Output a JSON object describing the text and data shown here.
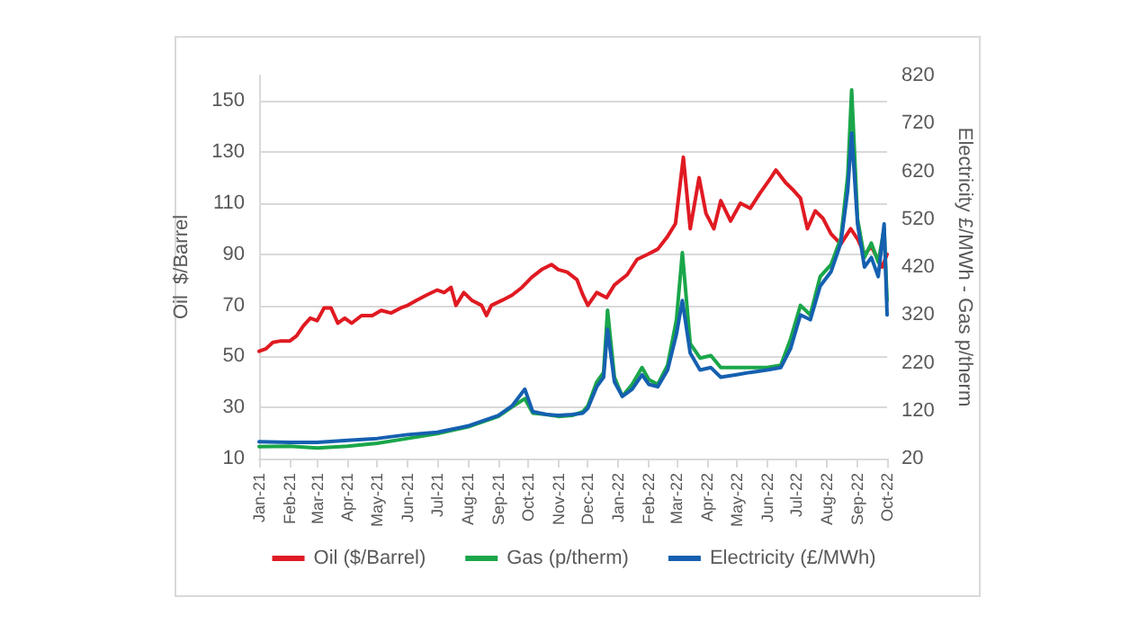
{
  "chart_data": {
    "type": "line",
    "ylabel": "Oil  $/Barrel",
    "y2label": "Electricity £/MWh - Gas p/therm",
    "legend": "bottom",
    "grid": "y",
    "marker": "none",
    "line_style": "solid",
    "xlim": [
      "2021-01-01",
      "2022-10-01"
    ],
    "xticks": [
      {
        "value": "2021-01-01",
        "label": "Jan-21"
      },
      {
        "value": "2021-02-01",
        "label": "Feb-21"
      },
      {
        "value": "2021-03-01",
        "label": "Mar-21"
      },
      {
        "value": "2021-04-01",
        "label": "Apr-21"
      },
      {
        "value": "2021-05-01",
        "label": "May-21"
      },
      {
        "value": "2021-06-01",
        "label": "Jun-21"
      },
      {
        "value": "2021-07-01",
        "label": "Jul-21"
      },
      {
        "value": "2021-08-01",
        "label": "Aug-21"
      },
      {
        "value": "2021-09-01",
        "label": "Sep-21"
      },
      {
        "value": "2021-10-01",
        "label": "Oct-21"
      },
      {
        "value": "2021-11-01",
        "label": "Nov-21"
      },
      {
        "value": "2021-12-01",
        "label": "Dec-21"
      },
      {
        "value": "2022-01-01",
        "label": "Jan-22"
      },
      {
        "value": "2022-02-01",
        "label": "Feb-22"
      },
      {
        "value": "2022-03-01",
        "label": "Mar-22"
      },
      {
        "value": "2022-04-01",
        "label": "Apr-22"
      },
      {
        "value": "2022-05-01",
        "label": "May-22"
      },
      {
        "value": "2022-06-01",
        "label": "Jun-22"
      },
      {
        "value": "2022-07-01",
        "label": "Jul-22"
      },
      {
        "value": "2022-08-01",
        "label": "Aug-22"
      },
      {
        "value": "2022-09-01",
        "label": "Sep-22"
      },
      {
        "value": "2022-10-01",
        "label": "Oct-22"
      }
    ],
    "ylim": [
      10,
      160
    ],
    "yticks": [
      10,
      30,
      50,
      70,
      90,
      110,
      130,
      150
    ],
    "y2lim": [
      20,
      820
    ],
    "y2ticks": [
      20,
      120,
      220,
      320,
      420,
      520,
      620,
      720,
      820
    ],
    "series": [
      {
        "name": "Oil ($/Barrel)",
        "color": "#e01a22",
        "x": [
          "2021-01-01",
          "2021-01-08",
          "2021-01-15",
          "2021-01-22",
          "2021-02-01",
          "2021-02-08",
          "2021-02-15",
          "2021-02-22",
          "2021-03-01",
          "2021-03-08",
          "2021-03-15",
          "2021-03-22",
          "2021-03-29",
          "2021-04-05",
          "2021-04-15",
          "2021-04-26",
          "2021-05-05",
          "2021-05-15",
          "2021-05-25",
          "2021-06-01",
          "2021-06-10",
          "2021-06-20",
          "2021-07-01",
          "2021-07-08",
          "2021-07-15",
          "2021-07-20",
          "2021-07-28",
          "2021-08-05",
          "2021-08-15",
          "2021-08-20",
          "2021-08-25",
          "2021-09-05",
          "2021-09-15",
          "2021-09-25",
          "2021-10-05",
          "2021-10-15",
          "2021-10-25",
          "2021-11-01",
          "2021-11-10",
          "2021-11-20",
          "2021-11-26",
          "2021-12-01",
          "2021-12-10",
          "2021-12-20",
          "2021-12-28",
          "2022-01-10",
          "2022-01-20",
          "2022-01-31",
          "2022-02-10",
          "2022-02-20",
          "2022-02-28",
          "2022-03-08",
          "2022-03-15",
          "2022-03-24",
          "2022-03-31",
          "2022-04-08",
          "2022-04-15",
          "2022-04-25",
          "2022-05-05",
          "2022-05-15",
          "2022-05-25",
          "2022-06-05",
          "2022-06-10",
          "2022-06-20",
          "2022-06-28",
          "2022-07-05",
          "2022-07-12",
          "2022-07-20",
          "2022-07-28",
          "2022-08-05",
          "2022-08-15",
          "2022-08-25",
          "2022-09-01",
          "2022-09-08",
          "2022-09-15",
          "2022-09-26",
          "2022-10-01"
        ],
        "values": [
          52,
          53,
          55.5,
          56,
          56,
          58,
          62,
          65,
          64,
          69,
          69,
          63,
          65,
          63,
          66,
          66,
          68,
          67,
          69,
          70,
          72,
          74,
          76,
          75,
          77,
          70,
          75,
          72,
          70,
          66,
          70,
          72,
          74,
          77,
          81,
          84,
          86,
          84,
          83,
          80,
          74,
          70,
          75,
          73,
          78,
          82,
          88,
          90,
          92,
          97,
          102,
          128,
          100,
          120,
          106,
          100,
          111,
          103,
          110,
          108,
          114,
          120,
          123,
          118,
          115,
          112,
          100,
          107,
          104,
          98,
          94,
          100,
          96,
          90,
          93,
          85,
          90
        ]
      },
      {
        "name": "Gas (p/therm)",
        "color": "#1aa64a",
        "axis": "y2",
        "x": [
          "2021-01-01",
          "2021-02-01",
          "2021-03-01",
          "2021-04-01",
          "2021-05-01",
          "2021-06-01",
          "2021-07-01",
          "2021-08-01",
          "2021-09-01",
          "2021-09-15",
          "2021-09-28",
          "2021-10-06",
          "2021-10-20",
          "2021-11-01",
          "2021-11-15",
          "2021-11-26",
          "2021-12-01",
          "2021-12-10",
          "2021-12-17",
          "2021-12-21",
          "2021-12-28",
          "2022-01-05",
          "2022-01-15",
          "2022-01-25",
          "2022-02-01",
          "2022-02-10",
          "2022-02-20",
          "2022-03-01",
          "2022-03-07",
          "2022-03-15",
          "2022-03-25",
          "2022-04-05",
          "2022-04-15",
          "2022-05-01",
          "2022-05-15",
          "2022-06-01",
          "2022-06-15",
          "2022-06-25",
          "2022-07-05",
          "2022-07-15",
          "2022-07-25",
          "2022-08-05",
          "2022-08-15",
          "2022-08-22",
          "2022-08-26",
          "2022-09-01",
          "2022-09-08",
          "2022-09-15",
          "2022-09-22",
          "2022-09-28",
          "2022-10-01"
        ],
        "values": [
          45,
          46,
          42,
          46,
          52,
          62,
          72,
          86,
          108,
          128,
          145,
          115,
          112,
          108,
          110,
          118,
          130,
          180,
          200,
          330,
          190,
          150,
          175,
          210,
          185,
          175,
          215,
          310,
          450,
          260,
          230,
          235,
          210,
          210,
          210,
          210,
          215,
          270,
          340,
          320,
          400,
          425,
          480,
          610,
          790,
          520,
          440,
          470,
          430,
          500,
          350
        ]
      },
      {
        "name": "Electricity (£/MWh)",
        "color": "#1560b0",
        "axis": "y2",
        "x": [
          "2021-01-01",
          "2021-02-01",
          "2021-03-01",
          "2021-04-01",
          "2021-05-01",
          "2021-06-01",
          "2021-07-01",
          "2021-08-01",
          "2021-09-01",
          "2021-09-15",
          "2021-09-28",
          "2021-10-06",
          "2021-10-20",
          "2021-11-01",
          "2021-11-15",
          "2021-11-26",
          "2021-12-01",
          "2021-12-10",
          "2021-12-17",
          "2021-12-21",
          "2021-12-28",
          "2022-01-05",
          "2022-01-15",
          "2022-01-25",
          "2022-02-01",
          "2022-02-10",
          "2022-02-20",
          "2022-03-01",
          "2022-03-07",
          "2022-03-15",
          "2022-03-25",
          "2022-04-05",
          "2022-04-15",
          "2022-05-01",
          "2022-05-15",
          "2022-06-01",
          "2022-06-15",
          "2022-06-25",
          "2022-07-05",
          "2022-07-15",
          "2022-07-25",
          "2022-08-05",
          "2022-08-15",
          "2022-08-22",
          "2022-08-26",
          "2022-09-01",
          "2022-09-08",
          "2022-09-15",
          "2022-09-22",
          "2022-09-28",
          "2022-10-01"
        ],
        "values": [
          55,
          54,
          54,
          58,
          62,
          70,
          75,
          88,
          110,
          130,
          165,
          118,
          112,
          110,
          112,
          115,
          125,
          170,
          190,
          290,
          180,
          150,
          165,
          195,
          175,
          170,
          205,
          280,
          350,
          240,
          205,
          210,
          190,
          195,
          200,
          205,
          210,
          250,
          320,
          310,
          380,
          410,
          470,
          580,
          700,
          510,
          420,
          440,
          400,
          510,
          320
        ]
      }
    ]
  }
}
